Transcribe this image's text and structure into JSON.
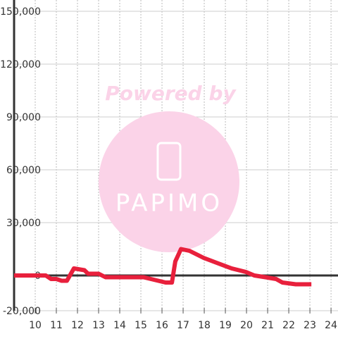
{
  "chart_data": {
    "type": "line",
    "watermark": {
      "line1": "Powered by",
      "line2": "PAPIMO"
    },
    "x": [
      9,
      9.5,
      10,
      10.5,
      10.75,
      11,
      11.25,
      11.5,
      11.83,
      12.33,
      12.5,
      13,
      13.33,
      14,
      15,
      15.13,
      16.17,
      16.47,
      16.63,
      16.9,
      17.3,
      17.97,
      18.63,
      19.3,
      19.97,
      20.37,
      20.9,
      21.4,
      21.7,
      22.33,
      23.07
    ],
    "series": [
      {
        "color": "#e8203c",
        "values": [
          0,
          0,
          0,
          0,
          -2000,
          -2000,
          -3000,
          -3000,
          4000,
          3000,
          1000,
          1000,
          -1000,
          -1000,
          -1000,
          -1000,
          -4000,
          -4000,
          8000,
          15000,
          14000,
          10000,
          7000,
          4000,
          2000,
          0,
          -1000,
          -2000,
          -4000,
          -5000,
          -5000
        ]
      }
    ],
    "xlim": [
      9,
      24.33
    ],
    "xticks": [
      10,
      11,
      12,
      13,
      14,
      15,
      16,
      17,
      18,
      19,
      20,
      21,
      22,
      23,
      24
    ],
    "ylim": [
      -20000,
      150000
    ],
    "yticks": [
      {
        "value": -20000,
        "label": "-20,000"
      },
      0,
      {
        "value": 30000,
        "label": "30,000"
      },
      {
        "value": 60000,
        "label": "60,000"
      },
      {
        "value": 90000,
        "label": "90,000"
      },
      {
        "value": 120000,
        "label": "120,000"
      },
      {
        "value": 150000,
        "label": "150,000"
      }
    ],
    "grid": true
  }
}
